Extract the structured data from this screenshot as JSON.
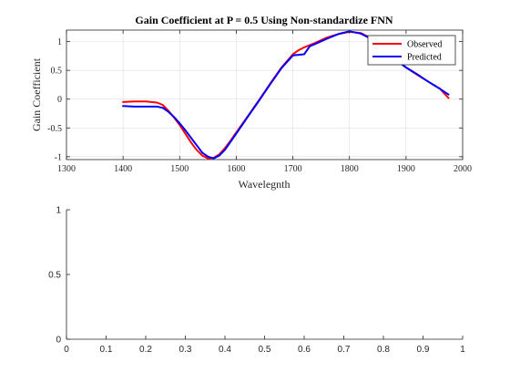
{
  "chart_data": [
    {
      "type": "line",
      "title": "Gain Coefficient at P = 0.5 Using Non-standardize FNN",
      "xlabel": "Wavelegnth",
      "ylabel": "Gain Coefficient",
      "xlim": [
        1300,
        2000
      ],
      "ylim": [
        -1.05,
        1.2
      ],
      "xticks": [
        1300,
        1400,
        1500,
        1600,
        1700,
        1800,
        1900,
        2000
      ],
      "yticks": [
        -1,
        -0.5,
        0,
        0.5,
        1
      ],
      "xtick_labels": [
        "1300",
        "1400",
        "1500",
        "1600",
        "1700",
        "1800",
        "1900",
        "2000"
      ],
      "ytick_labels": [
        "-1",
        "-0.5",
        "0",
        "0.5",
        "1"
      ],
      "grid": true,
      "legend": "top-right",
      "series": [
        {
          "name": "Observed",
          "color": "#ff0000",
          "x": [
            1400,
            1420,
            1440,
            1460,
            1470,
            1480,
            1490,
            1500,
            1510,
            1520,
            1530,
            1540,
            1550,
            1560,
            1570,
            1580,
            1590,
            1600,
            1620,
            1640,
            1660,
            1680,
            1700,
            1710,
            1720,
            1730,
            1740,
            1760,
            1780,
            1800,
            1820,
            1840,
            1860,
            1880,
            1900,
            1920,
            1940,
            1960,
            1975
          ],
          "y": [
            -0.05,
            -0.04,
            -0.04,
            -0.06,
            -0.1,
            -0.2,
            -0.32,
            -0.45,
            -0.6,
            -0.75,
            -0.88,
            -0.98,
            -1.03,
            -1.02,
            -0.96,
            -0.85,
            -0.72,
            -0.58,
            -0.3,
            -0.02,
            0.27,
            0.55,
            0.78,
            0.85,
            0.9,
            0.94,
            0.98,
            1.07,
            1.13,
            1.17,
            1.15,
            1.05,
            0.88,
            0.7,
            0.55,
            0.42,
            0.3,
            0.18,
            0.02
          ]
        },
        {
          "name": "Predicted",
          "color": "#0000ff",
          "x": [
            1400,
            1420,
            1440,
            1460,
            1470,
            1480,
            1490,
            1500,
            1510,
            1520,
            1530,
            1540,
            1550,
            1560,
            1570,
            1580,
            1590,
            1600,
            1620,
            1640,
            1660,
            1680,
            1700,
            1710,
            1720,
            1730,
            1740,
            1760,
            1780,
            1800,
            1820,
            1840,
            1860,
            1880,
            1900,
            1920,
            1940,
            1960,
            1975
          ],
          "y": [
            -0.12,
            -0.13,
            -0.13,
            -0.13,
            -0.15,
            -0.22,
            -0.31,
            -0.42,
            -0.54,
            -0.67,
            -0.8,
            -0.93,
            -1.0,
            -1.03,
            -0.98,
            -0.88,
            -0.74,
            -0.6,
            -0.31,
            -0.03,
            0.26,
            0.54,
            0.76,
            0.77,
            0.78,
            0.92,
            0.96,
            1.05,
            1.13,
            1.18,
            1.14,
            1.04,
            0.86,
            0.69,
            0.55,
            0.43,
            0.3,
            0.18,
            0.08
          ]
        }
      ]
    },
    {
      "type": "line",
      "title": "",
      "xlabel": "",
      "ylabel": "",
      "xlim": [
        0,
        1
      ],
      "ylim": [
        0,
        1
      ],
      "xticks": [
        0,
        0.1,
        0.2,
        0.3,
        0.4,
        0.5,
        0.6,
        0.7,
        0.8,
        0.9,
        1
      ],
      "yticks": [
        0,
        0.5,
        1
      ],
      "xtick_labels": [
        "0",
        "0.1",
        "0.2",
        "0.3",
        "0.4",
        "0.5",
        "0.6",
        "0.7",
        "0.8",
        "0.9",
        "1"
      ],
      "ytick_labels": [
        "0",
        "0.5",
        "1"
      ],
      "grid": false,
      "series": []
    }
  ]
}
